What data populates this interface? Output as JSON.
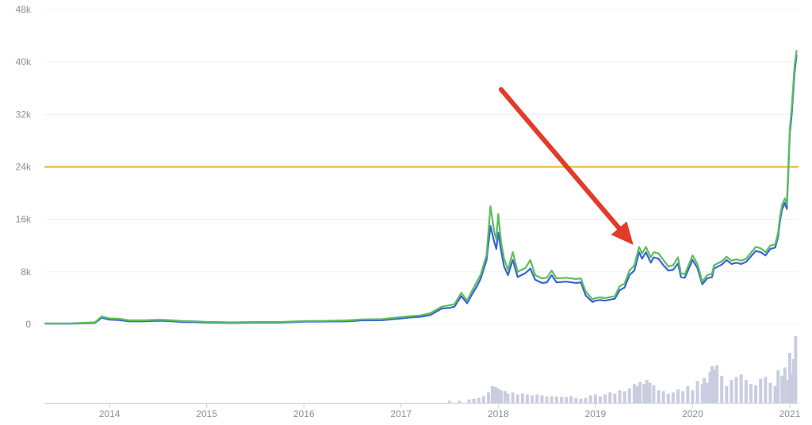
{
  "chart_data": {
    "type": "line",
    "grid": true,
    "ylim": [
      0,
      48000
    ],
    "y_ticks": [
      0,
      8000,
      16000,
      24000,
      32000,
      40000,
      48000
    ],
    "y_tick_labels": [
      "0",
      "8k",
      "16k",
      "24k",
      "32k",
      "40k",
      "48k"
    ],
    "xlim": [
      2013.33,
      2021.09
    ],
    "x_ticks": [
      2014,
      2015,
      2016,
      2017,
      2018,
      2019,
      2020,
      2021
    ],
    "x_tick_labels": [
      "2014",
      "2015",
      "2016",
      "2017",
      "2018",
      "2019",
      "2020",
      "2021"
    ],
    "reference_line": {
      "value": 24000,
      "color": "#e8b21d"
    },
    "annotation_arrow": {
      "from": [
        2018.03,
        35800
      ],
      "to": [
        2019.39,
        12100
      ],
      "color": "#e23b2a"
    },
    "series": [
      {
        "color": "#3a62d9",
        "x": [
          2013.34,
          2013.6,
          2013.85,
          2013.92,
          2014.0,
          2014.1,
          2014.2,
          2014.35,
          2014.5,
          2014.6,
          2014.75,
          2014.9,
          2015.0,
          2015.1,
          2015.25,
          2015.5,
          2015.75,
          2016.0,
          2016.2,
          2016.45,
          2016.6,
          2016.8,
          2017.0,
          2017.1,
          2017.2,
          2017.3,
          2017.42,
          2017.5,
          2017.55,
          2017.62,
          2017.68,
          2017.72,
          2017.78,
          2017.82,
          2017.88,
          2017.92,
          2017.96,
          2017.98,
          2018.0,
          2018.03,
          2018.06,
          2018.1,
          2018.15,
          2018.2,
          2018.28,
          2018.33,
          2018.38,
          2018.45,
          2018.5,
          2018.55,
          2018.6,
          2018.7,
          2018.8,
          2018.85,
          2018.9,
          2018.97,
          2019.0,
          2019.05,
          2019.1,
          2019.2,
          2019.25,
          2019.3,
          2019.35,
          2019.4,
          2019.45,
          2019.48,
          2019.52,
          2019.57,
          2019.6,
          2019.65,
          2019.7,
          2019.75,
          2019.8,
          2019.85,
          2019.88,
          2019.92,
          2020.0,
          2020.05,
          2020.1,
          2020.15,
          2020.2,
          2020.22,
          2020.3,
          2020.35,
          2020.4,
          2020.45,
          2020.5,
          2020.55,
          2020.65,
          2020.7,
          2020.75,
          2020.8,
          2020.85,
          2020.88,
          2020.9,
          2020.92,
          2020.95,
          2020.97,
          2021.0,
          2021.02,
          2021.05,
          2021.07
        ],
        "values": [
          100,
          100,
          200,
          1000,
          700,
          650,
          450,
          450,
          550,
          500,
          350,
          320,
          250,
          250,
          200,
          250,
          250,
          400,
          420,
          450,
          600,
          620,
          900,
          1050,
          1150,
          1400,
          2400,
          2500,
          2700,
          4300,
          3200,
          4300,
          5800,
          7000,
          9800,
          15000,
          12500,
          11500,
          14000,
          11200,
          8800,
          7500,
          9800,
          7200,
          7800,
          8500,
          6800,
          6300,
          6400,
          7500,
          6400,
          6500,
          6300,
          6400,
          4400,
          3400,
          3600,
          3700,
          3600,
          3900,
          5200,
          5600,
          7500,
          8200,
          11000,
          10000,
          11000,
          9400,
          10200,
          10000,
          9000,
          8200,
          8300,
          9300,
          7200,
          7100,
          9800,
          8600,
          6100,
          7000,
          7200,
          8500,
          9100,
          9800,
          9200,
          9400,
          9200,
          9500,
          11200,
          11000,
          10500,
          11500,
          11700,
          13400,
          15800,
          17500,
          18500,
          17600,
          29000,
          32000,
          38500,
          41000
        ]
      },
      {
        "color": "#5bbe5b",
        "x": [
          2013.34,
          2013.6,
          2013.85,
          2013.92,
          2014.0,
          2014.1,
          2014.2,
          2014.35,
          2014.5,
          2014.6,
          2014.75,
          2014.9,
          2015.0,
          2015.1,
          2015.25,
          2015.5,
          2015.75,
          2016.0,
          2016.2,
          2016.45,
          2016.6,
          2016.8,
          2017.0,
          2017.1,
          2017.2,
          2017.3,
          2017.42,
          2017.5,
          2017.55,
          2017.62,
          2017.68,
          2017.72,
          2017.78,
          2017.82,
          2017.88,
          2017.92,
          2017.96,
          2017.98,
          2018.0,
          2018.03,
          2018.06,
          2018.1,
          2018.15,
          2018.2,
          2018.28,
          2018.33,
          2018.38,
          2018.45,
          2018.5,
          2018.55,
          2018.6,
          2018.7,
          2018.8,
          2018.85,
          2018.9,
          2018.97,
          2019.0,
          2019.05,
          2019.1,
          2019.2,
          2019.25,
          2019.3,
          2019.35,
          2019.4,
          2019.45,
          2019.48,
          2019.52,
          2019.57,
          2019.6,
          2019.65,
          2019.7,
          2019.75,
          2019.8,
          2019.85,
          2019.88,
          2019.92,
          2020.0,
          2020.05,
          2020.1,
          2020.15,
          2020.2,
          2020.22,
          2020.3,
          2020.35,
          2020.4,
          2020.45,
          2020.5,
          2020.55,
          2020.65,
          2020.7,
          2020.75,
          2020.8,
          2020.85,
          2020.88,
          2020.9,
          2020.92,
          2020.95,
          2020.97,
          2021.0,
          2021.02,
          2021.05,
          2021.07
        ],
        "values": [
          150,
          150,
          300,
          1200,
          900,
          850,
          600,
          600,
          700,
          650,
          500,
          450,
          350,
          350,
          300,
          350,
          350,
          500,
          520,
          600,
          750,
          780,
          1100,
          1250,
          1350,
          1700,
          2700,
          2900,
          3100,
          4800,
          3600,
          4800,
          6500,
          7600,
          10600,
          18000,
          14000,
          13000,
          16800,
          12500,
          10000,
          8300,
          11000,
          8000,
          8600,
          9800,
          7500,
          7000,
          7100,
          8200,
          7000,
          7100,
          6900,
          7000,
          5000,
          3800,
          4000,
          4100,
          4000,
          4300,
          5800,
          6200,
          8200,
          9000,
          11800,
          10800,
          11800,
          10200,
          11000,
          10800,
          9800,
          8800,
          9000,
          10200,
          7800,
          7600,
          10500,
          9200,
          6500,
          7500,
          7700,
          9000,
          9600,
          10300,
          9700,
          9900,
          9700,
          10000,
          11800,
          11600,
          11000,
          12000,
          12200,
          14000,
          16500,
          18200,
          19200,
          18300,
          29800,
          33000,
          39500,
          41700
        ]
      }
    ],
    "volume": {
      "color": "#c9cddf",
      "x": [
        2017.5,
        2017.6,
        2017.7,
        2017.75,
        2017.8,
        2017.85,
        2017.9,
        2017.94,
        2017.97,
        2018.0,
        2018.03,
        2018.07,
        2018.1,
        2018.15,
        2018.2,
        2018.25,
        2018.3,
        2018.35,
        2018.4,
        2018.45,
        2018.5,
        2018.55,
        2018.6,
        2018.65,
        2018.7,
        2018.75,
        2018.8,
        2018.85,
        2018.9,
        2018.95,
        2019.0,
        2019.05,
        2019.1,
        2019.15,
        2019.2,
        2019.25,
        2019.3,
        2019.35,
        2019.4,
        2019.43,
        2019.46,
        2019.5,
        2019.53,
        2019.56,
        2019.6,
        2019.65,
        2019.7,
        2019.75,
        2019.8,
        2019.85,
        2019.9,
        2019.95,
        2020.0,
        2020.05,
        2020.1,
        2020.12,
        2020.15,
        2020.18,
        2020.2,
        2020.22,
        2020.25,
        2020.3,
        2020.35,
        2020.4,
        2020.45,
        2020.5,
        2020.55,
        2020.6,
        2020.65,
        2020.7,
        2020.75,
        2020.8,
        2020.85,
        2020.88,
        2020.92,
        2020.95,
        2020.98,
        2021.0,
        2021.02,
        2021.04,
        2021.06
      ],
      "values": [
        5,
        5,
        8,
        10,
        12,
        16,
        25,
        40,
        38,
        35,
        30,
        28,
        22,
        25,
        20,
        22,
        20,
        18,
        20,
        18,
        15,
        16,
        15,
        14,
        14,
        16,
        12,
        10,
        12,
        18,
        20,
        15,
        20,
        25,
        22,
        30,
        28,
        35,
        45,
        40,
        50,
        45,
        55,
        48,
        42,
        30,
        28,
        22,
        25,
        32,
        28,
        40,
        30,
        52,
        45,
        60,
        48,
        75,
        88,
        80,
        90,
        65,
        40,
        55,
        62,
        68,
        55,
        45,
        42,
        58,
        62,
        48,
        40,
        78,
        65,
        85,
        55,
        120,
        70,
        105,
        160
      ]
    }
  }
}
